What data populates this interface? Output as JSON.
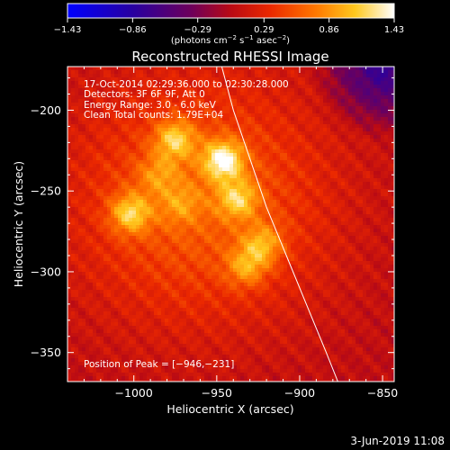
{
  "colorbar": {
    "ticks": [
      "-1.43",
      "-0.86",
      "-0.29",
      "0.29",
      "0.86",
      "1.43"
    ],
    "units_main": "(photons cm",
    "units_exp1": "−2",
    "units_mid": " s",
    "units_exp2": "−1",
    "units_end": " asec",
    "units_exp3": "−2",
    "units_close": ")",
    "vmin": -1.43,
    "vmax": 1.43
  },
  "chart_data": {
    "type": "heatmap",
    "title": "Reconstructed RHESSI Image",
    "xlabel": "Heliocentric X (arcsec)",
    "ylabel": "Heliocentric Y (arcsec)",
    "xlim": [
      -1040,
      -843
    ],
    "ylim": [
      -368,
      -173
    ],
    "x_ticks": [
      -1000,
      -950,
      -900,
      -850
    ],
    "y_ticks": [
      -200,
      -250,
      -300,
      -350
    ],
    "x_tick_labels": [
      "−1000",
      "−950",
      "−900",
      "−850"
    ],
    "y_tick_labels": [
      "−200",
      "−250",
      "−300",
      "−350"
    ],
    "annotations": [
      "17-Oct-2014 02:29:36.000 to 02:30:28.000",
      "Detectors: 3F 6F 9F, Att 0",
      "Energy Range: 3.0 - 6.0 keV",
      "Clean    Total counts: 1.79E+04"
    ],
    "peak_label": "Position of Peak = [−946,−231]",
    "peak": [
      -946,
      -231
    ],
    "sources": [
      {
        "x": -946,
        "y": -231,
        "peak": 1.43
      },
      {
        "x": -975,
        "y": -218,
        "peak": 1.05
      },
      {
        "x": -1002,
        "y": -264,
        "peak": 1.1
      },
      {
        "x": -937,
        "y": -255,
        "peak": 0.95
      },
      {
        "x": -922,
        "y": -283,
        "peak": 0.85
      },
      {
        "x": -932,
        "y": -297,
        "peak": 0.8
      },
      {
        "x": -985,
        "y": -240,
        "peak": 0.55
      },
      {
        "x": -972,
        "y": -258,
        "peak": 0.5
      }
    ],
    "limb": [
      [
        -947,
        -173
      ],
      [
        -940,
        -200
      ],
      [
        -930,
        -230
      ],
      [
        -920,
        -260
      ],
      [
        -908,
        -290
      ],
      [
        -896,
        -320
      ],
      [
        -884,
        -350
      ],
      [
        -877,
        -368
      ]
    ]
  },
  "footer": {
    "date": "3-Jun-2019 11:08"
  }
}
